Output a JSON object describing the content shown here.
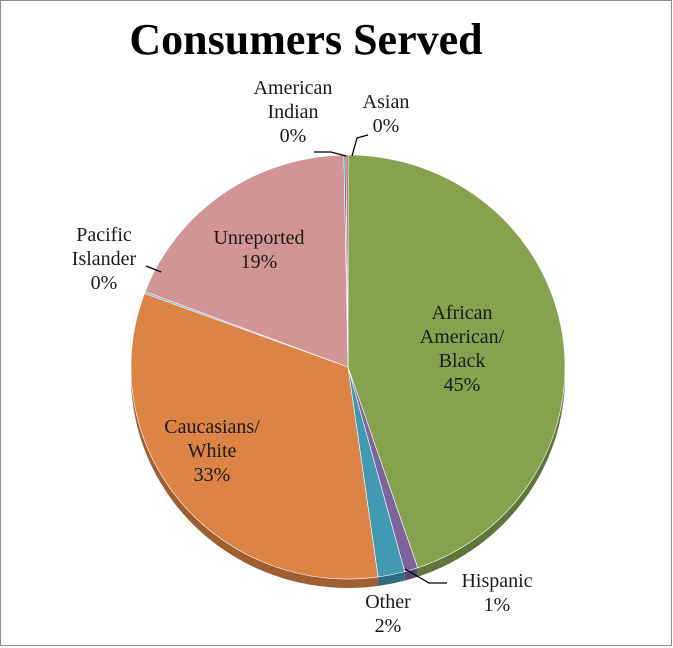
{
  "chart_data": {
    "type": "pie",
    "title": "Consumers Served",
    "categories": [
      "African American/ Black",
      "Hispanic",
      "Other",
      "Caucasians/ White",
      "Pacific Islander",
      "Unreported",
      "American Indian",
      "Asian"
    ],
    "values": [
      45,
      1,
      2,
      33,
      0,
      19,
      0,
      0
    ],
    "slices": [
      {
        "name": "African American/ Black",
        "label_lines": [
          "African",
          "American/",
          "Black"
        ],
        "percent_label": "45%",
        "value": 45,
        "color": "#86a24f"
      },
      {
        "name": "Hispanic",
        "label_lines": [
          "Hispanic"
        ],
        "percent_label": "1%",
        "value": 1,
        "color": "#7e649e"
      },
      {
        "name": "Other",
        "label_lines": [
          "Other"
        ],
        "percent_label": "2%",
        "value": 2,
        "color": "#4199b2"
      },
      {
        "name": "Caucasians/ White",
        "label_lines": [
          "Caucasians/",
          "White"
        ],
        "percent_label": "33%",
        "value": 33,
        "color": "#db8445"
      },
      {
        "name": "Pacific Islander",
        "label_lines": [
          "Pacific",
          "Islander"
        ],
        "percent_label": "0%",
        "value": 0.15,
        "color": "#93a9cf"
      },
      {
        "name": "Unreported",
        "label_lines": [
          "Unreported"
        ],
        "percent_label": "19%",
        "value": 19,
        "color": "#d09594"
      },
      {
        "name": "American Indian",
        "label_lines": [
          "American",
          "Indian"
        ],
        "percent_label": "0%",
        "value": 0.15,
        "color": "#4a7ebb"
      },
      {
        "name": "Asian",
        "label_lines": [
          "Asian"
        ],
        "percent_label": "0%",
        "value": 0.15,
        "color": "#be4b48"
      }
    ],
    "start_angle_deg": 0,
    "direction": "clockwise",
    "legend": "none",
    "data_labels": "category name and percentage"
  }
}
